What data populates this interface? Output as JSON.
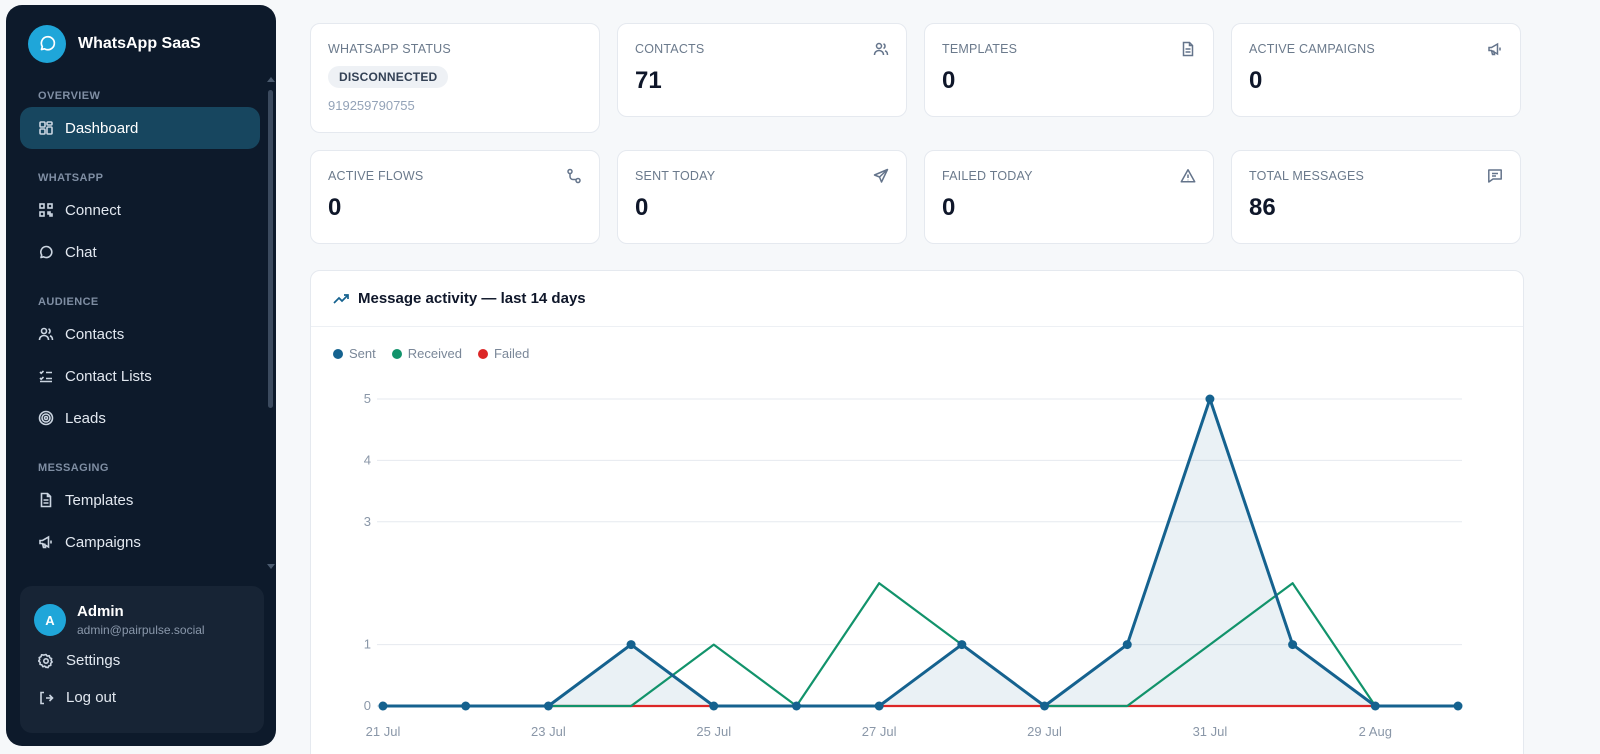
{
  "app": {
    "name": "WhatsApp SaaS"
  },
  "sidebar": {
    "sections": [
      {
        "label": "OVERVIEW",
        "items": [
          {
            "label": "Dashboard",
            "icon": "dashboard-icon",
            "active": true
          }
        ]
      },
      {
        "label": "WHATSAPP",
        "items": [
          {
            "label": "Connect",
            "icon": "qr-code-icon"
          },
          {
            "label": "Chat",
            "icon": "chat-bubble-icon"
          }
        ]
      },
      {
        "label": "AUDIENCE",
        "items": [
          {
            "label": "Contacts",
            "icon": "users-icon"
          },
          {
            "label": "Contact Lists",
            "icon": "checklist-icon"
          },
          {
            "label": "Leads",
            "icon": "target-icon"
          }
        ]
      },
      {
        "label": "MESSAGING",
        "items": [
          {
            "label": "Templates",
            "icon": "document-icon"
          },
          {
            "label": "Campaigns",
            "icon": "megaphone-icon"
          }
        ]
      }
    ],
    "user": {
      "initial": "A",
      "name": "Admin",
      "email": "admin@pairpulse.social",
      "settings_label": "Settings",
      "logout_label": "Log out"
    }
  },
  "stats": {
    "whatsapp_status": {
      "label": "WHATSAPP STATUS",
      "status": "DISCONNECTED",
      "phone": "919259790755"
    },
    "contacts": {
      "label": "CONTACTS",
      "value": "71",
      "icon": "users-icon"
    },
    "templates": {
      "label": "TEMPLATES",
      "value": "0",
      "icon": "document-icon"
    },
    "active_campaigns": {
      "label": "ACTIVE CAMPAIGNS",
      "value": "0",
      "icon": "megaphone-icon"
    },
    "active_flows": {
      "label": "ACTIVE FLOWS",
      "value": "0",
      "icon": "flow-icon"
    },
    "sent_today": {
      "label": "SENT TODAY",
      "value": "0",
      "icon": "send-icon"
    },
    "failed_today": {
      "label": "FAILED TODAY",
      "value": "0",
      "icon": "warning-icon"
    },
    "total_messages": {
      "label": "TOTAL MESSAGES",
      "value": "86",
      "icon": "message-square-icon"
    }
  },
  "activity": {
    "title": "Message activity — last 14 days",
    "legend": {
      "sent": "Sent",
      "received": "Received",
      "failed": "Failed"
    }
  },
  "colors": {
    "accent": "#1fa6d9",
    "sidebar_bg": "#0d1a2b",
    "sent": "#15628f",
    "received": "#12936b",
    "failed": "#dc2626"
  },
  "chart_data": {
    "type": "line",
    "title": "Message activity — last 14 days",
    "x": [
      "21 Jul",
      "22 Jul",
      "23 Jul",
      "24 Jul",
      "25 Jul",
      "26 Jul",
      "27 Jul",
      "28 Jul",
      "29 Jul",
      "30 Jul",
      "31 Jul",
      "1 Aug",
      "2 Aug",
      "3 Aug"
    ],
    "x_tick_labels": [
      "21 Jul",
      "23 Jul",
      "25 Jul",
      "27 Jul",
      "29 Jul",
      "31 Jul",
      "2 Aug"
    ],
    "y_ticks": [
      0,
      1,
      3,
      4,
      5
    ],
    "ylim": [
      0,
      5
    ],
    "series": [
      {
        "name": "Sent",
        "values": [
          0,
          0,
          0,
          1,
          0,
          0,
          0,
          1,
          0,
          1,
          5,
          1,
          0,
          0
        ],
        "markers": true,
        "filled": true
      },
      {
        "name": "Received",
        "values": [
          0,
          0,
          0,
          0,
          1,
          0,
          2,
          1,
          0,
          0,
          1,
          2,
          0,
          0
        ]
      },
      {
        "name": "Failed",
        "values": [
          0,
          0,
          0,
          0,
          0,
          0,
          0,
          0,
          0,
          0,
          0,
          0,
          0,
          0
        ]
      }
    ],
    "grid": true,
    "legend_position": "top-left"
  }
}
